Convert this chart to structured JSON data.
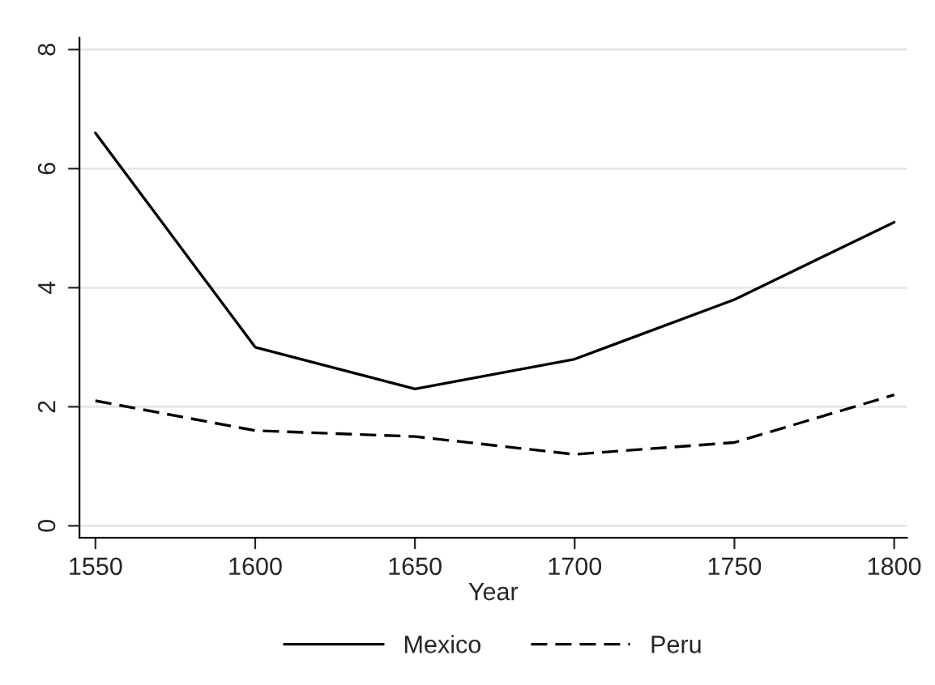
{
  "chart_data": {
    "type": "line",
    "xlabel": "Year",
    "x": [
      1550,
      1600,
      1650,
      1700,
      1750,
      1800
    ],
    "series": [
      {
        "name": "Mexico",
        "color": "#000000",
        "line_style": "solid",
        "values": [
          6.6,
          3.0,
          2.3,
          2.8,
          3.8,
          5.1
        ]
      },
      {
        "name": "Peru",
        "color": "#000000",
        "line_style": "dashed",
        "values": [
          2.1,
          1.6,
          1.5,
          1.2,
          1.4,
          2.2
        ]
      }
    ],
    "xlim": [
      1545,
      1804
    ],
    "xticks": [
      1550,
      1600,
      1650,
      1700,
      1750,
      1800
    ],
    "ylim": [
      -0.2,
      8.2
    ],
    "yticks": [
      0,
      2,
      4,
      6,
      8
    ],
    "grid": "y",
    "legend": "bottom",
    "marker": "none"
  }
}
